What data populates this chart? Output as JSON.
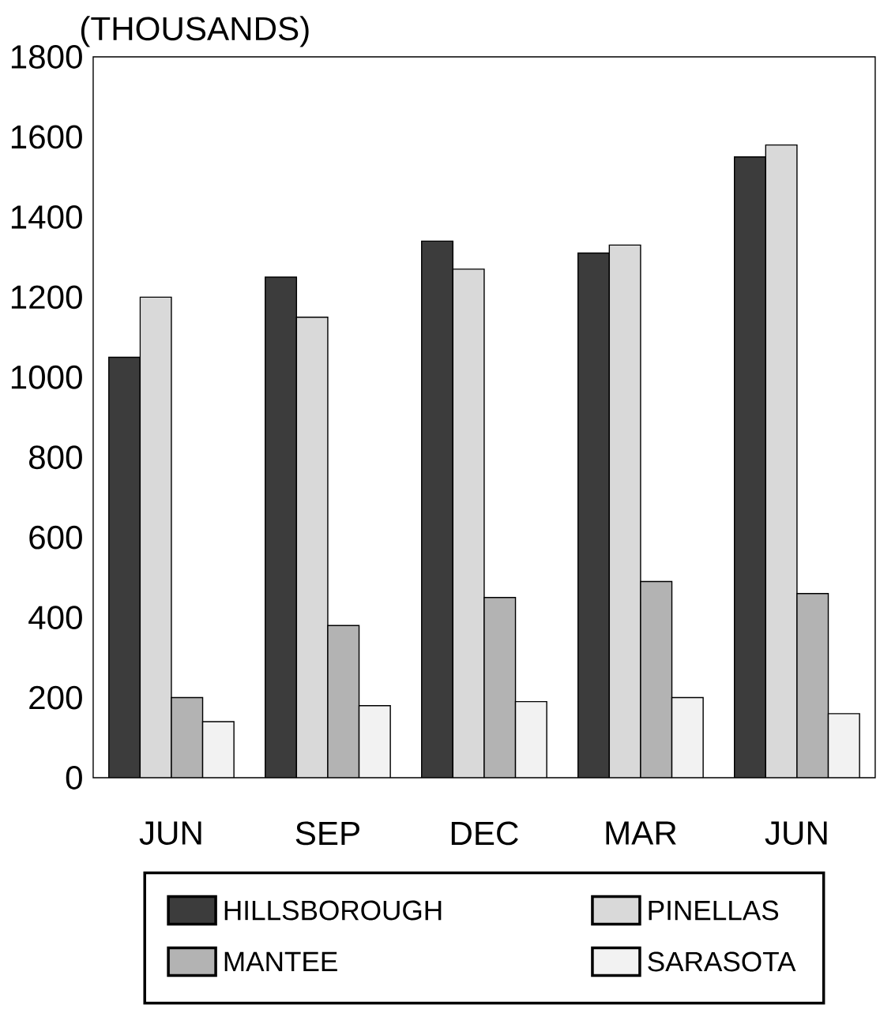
{
  "chart_data": {
    "type": "bar",
    "ylabel": "(THOUSANDS)",
    "categories": [
      "JUN",
      "SEP",
      "DEC",
      "MAR",
      "JUN"
    ],
    "series": [
      {
        "name": "HILLSBOROUGH",
        "color": "#3c3c3c",
        "values": [
          1050,
          1250,
          1340,
          1310,
          1550
        ]
      },
      {
        "name": "PINELLAS",
        "color": "#d9d9d9",
        "values": [
          1200,
          1150,
          1270,
          1330,
          1580
        ]
      },
      {
        "name": "MANTEE",
        "color": "#b3b3b3",
        "values": [
          200,
          380,
          450,
          490,
          460
        ]
      },
      {
        "name": "SARASOTA",
        "color": "#f2f2f2",
        "values": [
          140,
          180,
          190,
          200,
          160
        ]
      }
    ],
    "ylim": [
      0,
      1800
    ],
    "yticks": [
      0,
      200,
      400,
      600,
      800,
      1000,
      1200,
      1400,
      1600,
      1800
    ],
    "legend": "bottom",
    "grid": false
  }
}
